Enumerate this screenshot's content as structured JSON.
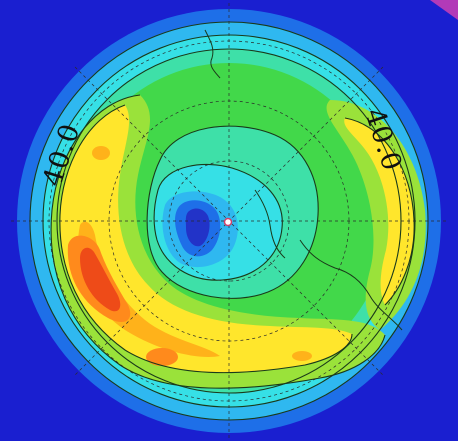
{
  "map": {
    "labels": {
      "left": "40.0",
      "right": "40.0"
    },
    "colors": {
      "outer": "#1a1fd0",
      "blue": "#1e6fe8",
      "light_blue": "#2fb8f0",
      "cyan": "#36e0e6",
      "aqua_green": "#3ee0a8",
      "green": "#42d84a",
      "lime": "#9ae23a",
      "yellow": "#ffe62c",
      "light_orange": "#ffb21a",
      "orange": "#ff8a1c",
      "red_orange": "#ee4b18",
      "center_dark_blue": "#2233c8",
      "corner_magenta": "#b23ab8",
      "contour_line": "#1a3a1a",
      "grid_line": "#2a2a2a"
    }
  }
}
